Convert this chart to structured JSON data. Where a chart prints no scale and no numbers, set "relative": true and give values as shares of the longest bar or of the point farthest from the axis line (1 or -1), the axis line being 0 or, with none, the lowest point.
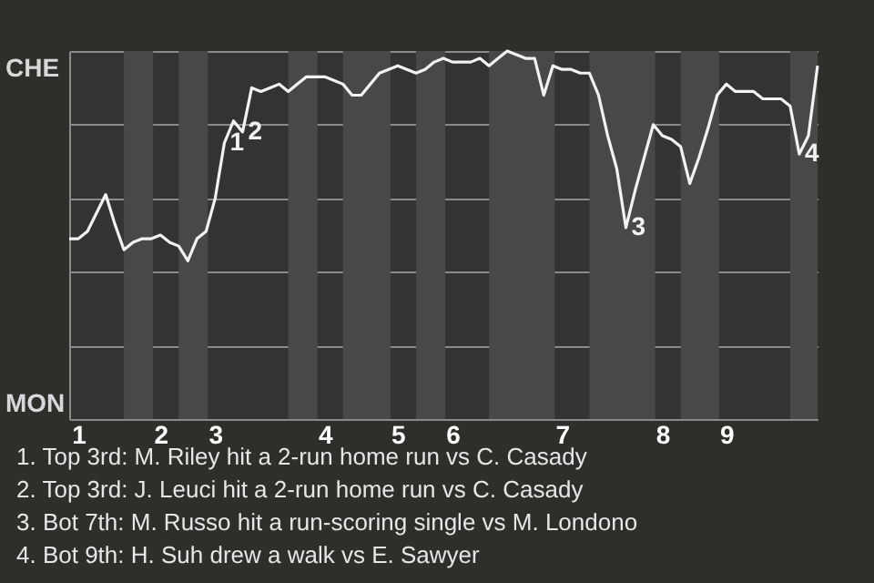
{
  "chart_data": {
    "type": "line",
    "relative": true,
    "categories": [
      null,
      "1",
      null,
      null,
      null,
      null,
      null,
      null,
      null,
      null,
      "2",
      null,
      null,
      null,
      null,
      null,
      "3",
      null,
      null,
      null,
      null,
      null,
      null,
      null,
      null,
      null,
      null,
      null,
      "4",
      null,
      null,
      null,
      null,
      null,
      null,
      null,
      "5",
      null,
      null,
      null,
      null,
      null,
      "6",
      null,
      null,
      null,
      null,
      null,
      null,
      null,
      null,
      null,
      null,
      null,
      "7",
      null,
      null,
      null,
      null,
      null,
      null,
      null,
      null,
      null,
      null,
      "8",
      null,
      null,
      null,
      null,
      null,
      null,
      "9",
      null,
      null,
      null,
      null,
      null,
      null,
      null,
      null,
      null,
      null
    ],
    "series": [
      {
        "color": "#f2f2f2",
        "values": [
          0.49,
          0.49,
          0.51,
          0.56,
          0.61,
          0.53,
          0.46,
          0.48,
          0.49,
          0.49,
          0.5,
          0.48,
          0.47,
          0.43,
          0.49,
          0.51,
          0.6,
          0.75,
          0.81,
          0.78,
          0.9,
          0.89,
          0.9,
          0.91,
          0.89,
          0.91,
          0.93,
          0.93,
          0.93,
          0.92,
          0.91,
          0.88,
          0.88,
          0.91,
          0.94,
          0.95,
          0.96,
          0.95,
          0.94,
          0.95,
          0.97,
          0.98,
          0.97,
          0.97,
          0.97,
          0.98,
          0.96,
          0.98,
          1,
          0.99,
          0.98,
          0.98,
          0.88,
          0.96,
          0.95,
          0.95,
          0.94,
          0.94,
          0.88,
          0.77,
          0.68,
          0.52,
          0.62,
          0.71,
          0.8,
          0.77,
          0.76,
          0.74,
          0.64,
          0.71,
          0.79,
          0.88,
          0.91,
          0.89,
          0.89,
          0.89,
          0.87,
          0.87,
          0.87,
          0.85,
          0.72,
          0.77,
          0.96
        ]
      }
    ],
    "grid": "y",
    "annotations": [
      "CHE",
      "MON",
      "1",
      "2",
      "3",
      "4",
      "1. Top 3rd: M. Riley hit a 2-run home run vs C. Casady",
      "2. Top 3rd: J. Leuci hit a 2-run home run vs C. Casady",
      "3. Bot 7th: M. Russo hit a run-scoring single vs M. Londono",
      "4. Bot 9th: H. Suh drew a walk vs E. Sawyer"
    ]
  }
}
